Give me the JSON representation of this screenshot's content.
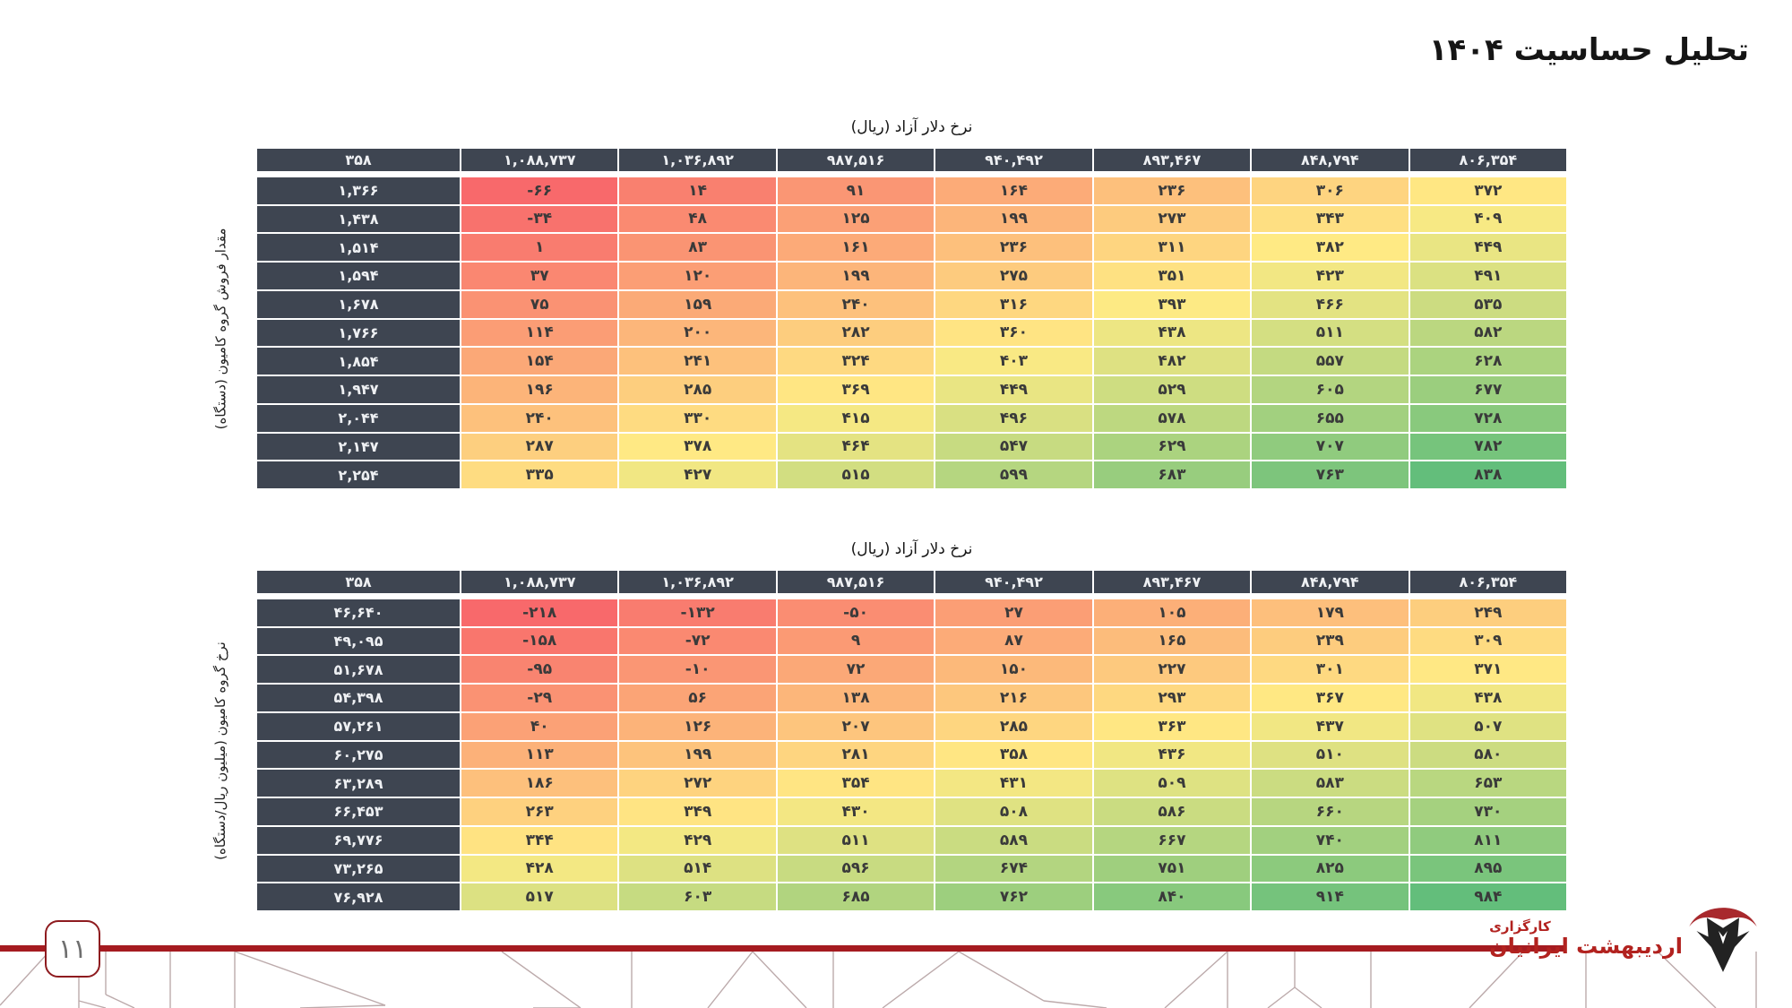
{
  "page": {
    "title": "تحلیل حساسیت ۱۴۰۴",
    "page_number": "۱۱"
  },
  "brand": {
    "line1": "کارگزاری",
    "line2": "اردیبهشت ایرانیان"
  },
  "colors": {
    "accent": "#A51B20",
    "header_bg": "#3E4551",
    "header_text": "#EEF0F3",
    "scale_min": "#F8696B",
    "scale_mid": "#FFEB84",
    "scale_max": "#63BE7B",
    "cell_text": "#3A3A3A",
    "pattern_line": "#BCAAAB"
  },
  "chart_data": [
    {
      "type": "heatmap",
      "title": "نرخ دلار آزاد (ریال)",
      "row_axis_label": "مقدار فروش گروه کامیون (دستگاه)",
      "corner_value": 358,
      "col_headers": [
        1088737,
        1036892,
        987516,
        940492,
        893467,
        848794,
        806354
      ],
      "row_headers": [
        1366,
        1438,
        1514,
        1594,
        1678,
        1766,
        1854,
        1947,
        2044,
        2147,
        2254
      ],
      "values": [
        [
          -66,
          14,
          91,
          164,
          236,
          306,
          372
        ],
        [
          -34,
          48,
          125,
          199,
          273,
          343,
          409
        ],
        [
          1,
          83,
          161,
          236,
          311,
          382,
          449
        ],
        [
          37,
          120,
          199,
          275,
          351,
          423,
          491
        ],
        [
          75,
          159,
          240,
          316,
          393,
          466,
          535
        ],
        [
          114,
          200,
          282,
          360,
          438,
          511,
          582
        ],
        [
          154,
          241,
          324,
          403,
          482,
          557,
          628
        ],
        [
          196,
          285,
          369,
          449,
          529,
          605,
          677
        ],
        [
          240,
          330,
          415,
          496,
          578,
          655,
          728
        ],
        [
          287,
          378,
          464,
          547,
          629,
          707,
          782
        ],
        [
          335,
          427,
          515,
          599,
          683,
          763,
          838
        ]
      ]
    },
    {
      "type": "heatmap",
      "title": "نرخ دلار آزاد (ریال)",
      "row_axis_label": "نرخ گروه کامیون (میلیون ریال/دستگاه)",
      "corner_value": 358,
      "col_headers": [
        1088737,
        1036892,
        987516,
        940492,
        893467,
        848794,
        806354
      ],
      "row_headers": [
        46640,
        49095,
        51678,
        54398,
        57261,
        60275,
        63289,
        66453,
        69776,
        73265,
        76928
      ],
      "values": [
        [
          -218,
          -132,
          -50,
          27,
          105,
          179,
          249
        ],
        [
          -158,
          -72,
          9,
          87,
          165,
          239,
          309
        ],
        [
          -95,
          -10,
          72,
          150,
          227,
          301,
          371
        ],
        [
          -29,
          56,
          138,
          216,
          293,
          367,
          438
        ],
        [
          40,
          126,
          207,
          285,
          363,
          437,
          507
        ],
        [
          113,
          199,
          281,
          358,
          436,
          510,
          580
        ],
        [
          186,
          272,
          354,
          431,
          509,
          583,
          653
        ],
        [
          263,
          349,
          430,
          508,
          586,
          660,
          730
        ],
        [
          344,
          429,
          511,
          589,
          667,
          740,
          811
        ],
        [
          428,
          514,
          596,
          674,
          751,
          825,
          895
        ],
        [
          517,
          603,
          685,
          762,
          840,
          914,
          984
        ]
      ]
    }
  ]
}
